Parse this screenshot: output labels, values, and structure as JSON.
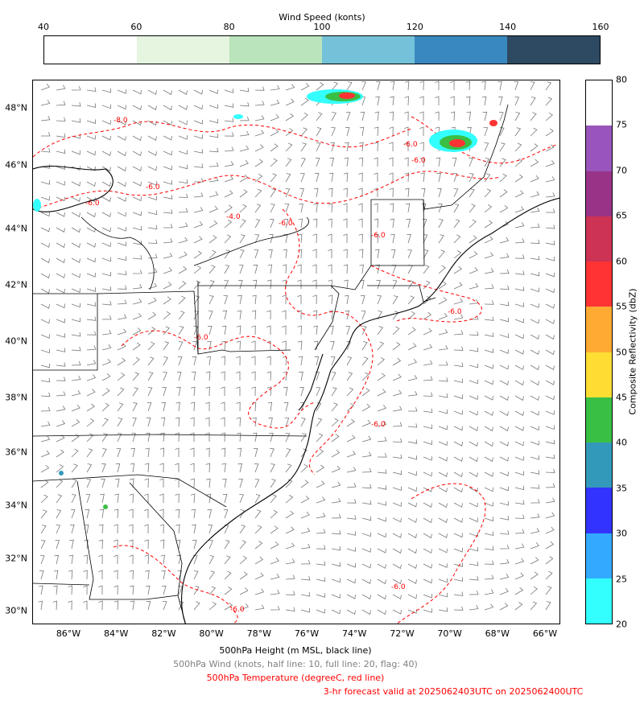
{
  "wind_colorbar": {
    "title": "Wind Speed (konts)",
    "ticks": [
      "40",
      "60",
      "80",
      "100",
      "120",
      "140",
      "160"
    ],
    "colors": [
      "#ffffff",
      "#e5f5e0",
      "#bae4bc",
      "#74c2d9",
      "#3a88c0",
      "#2e4a62"
    ]
  },
  "map": {
    "lat_labels": [
      "48°N",
      "46°N",
      "44°N",
      "42°N",
      "40°N",
      "38°N",
      "36°N",
      "34°N",
      "32°N",
      "30°N"
    ],
    "lon_labels": [
      "86°W",
      "84°W",
      "82°W",
      "80°W",
      "78°W",
      "76°W",
      "74°W",
      "72°W",
      "70°W",
      "68°W",
      "66°W"
    ],
    "contour_labels": [
      "-8.0",
      "-6.0",
      "-6.0",
      "-4.0",
      "-6.0",
      "-6.0",
      "-6.0",
      "-6.0",
      "-6.0",
      "-6.0",
      "-6.0",
      "-6.0",
      "-6.0"
    ],
    "colors": {
      "coast": "#000000",
      "temperature": "#ff0000",
      "barb": "#777777"
    }
  },
  "refl_colorbar": {
    "title": "Composite Reflectivity (dbZ)",
    "ticks": [
      "20",
      "25",
      "30",
      "35",
      "40",
      "45",
      "50",
      "55",
      "60",
      "65",
      "70",
      "75",
      "80"
    ],
    "colors": [
      "#33ffff",
      "#33aaff",
      "#3333ff",
      "#3399bb",
      "#3abf45",
      "#ffdd33",
      "#ffaa33",
      "#ff3333",
      "#cc3355",
      "#993388",
      "#9955bb",
      "#ffffff"
    ]
  },
  "legend": {
    "height": "500hPa Height (m MSL, black line)",
    "wind": "500hPa Wind (knots, half line: 10, full line: 20, flag: 40)",
    "temperature": "500hPa Temperature (degreeC, red line)",
    "valid": "3-hr forecast valid at 2025062403UTC on 2025062400UTC"
  }
}
